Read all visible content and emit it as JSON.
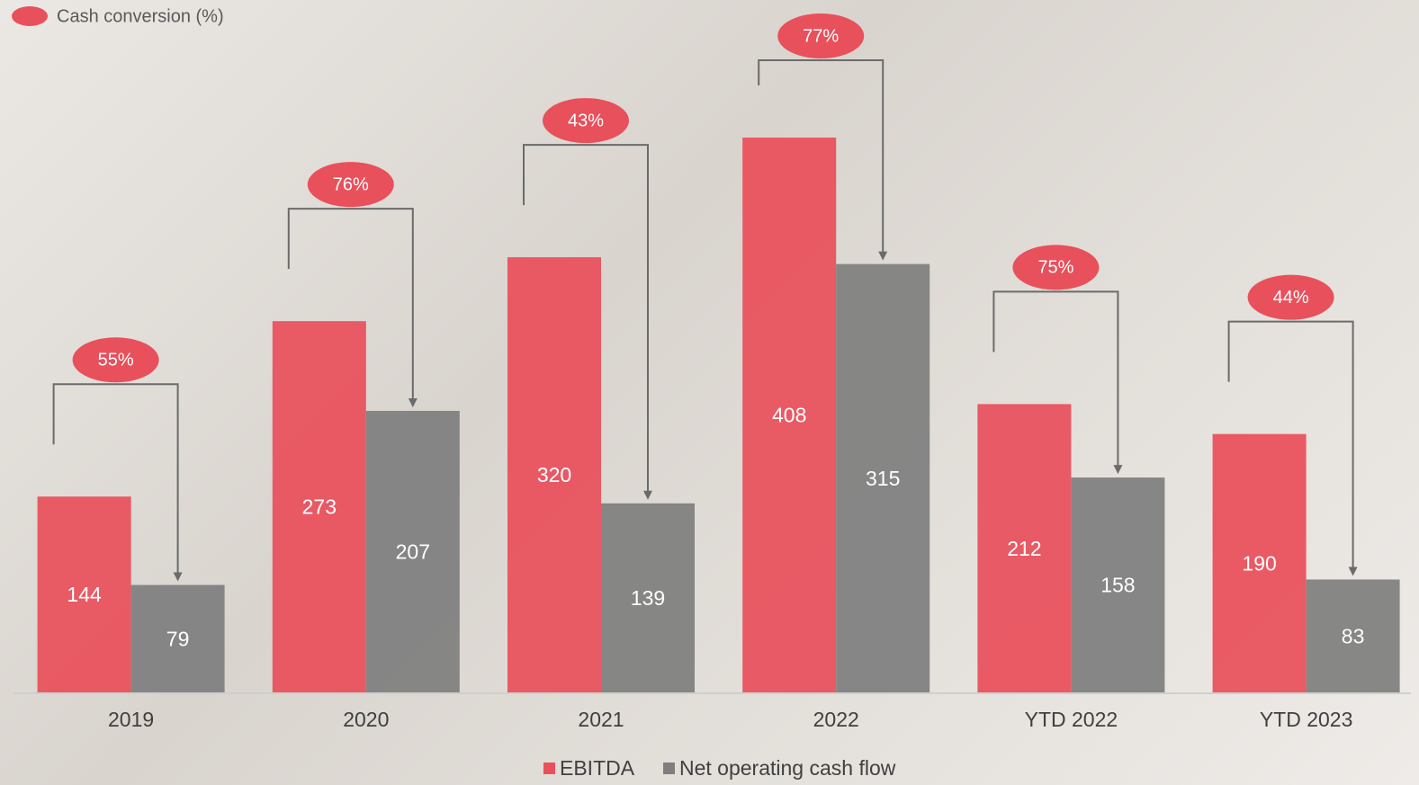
{
  "chart_data": {
    "type": "bar",
    "categories": [
      "2019",
      "2020",
      "2021",
      "2022",
      "YTD 2022",
      "YTD 2023"
    ],
    "series": [
      {
        "name": "EBITDA",
        "color": "#e8505b",
        "values": [
          144,
          273,
          320,
          408,
          212,
          190
        ]
      },
      {
        "name": "Net operating cash flow",
        "color": "#7f7f7f",
        "values": [
          79,
          207,
          139,
          315,
          158,
          83
        ]
      }
    ],
    "cash_conversion": {
      "name": "Cash conversion (%)",
      "color": "#e8505b",
      "values": [
        55,
        76,
        43,
        77,
        75,
        44
      ],
      "value_labels": [
        "55%",
        "76%",
        "43%",
        "77%",
        "75%",
        "44%"
      ]
    }
  }
}
